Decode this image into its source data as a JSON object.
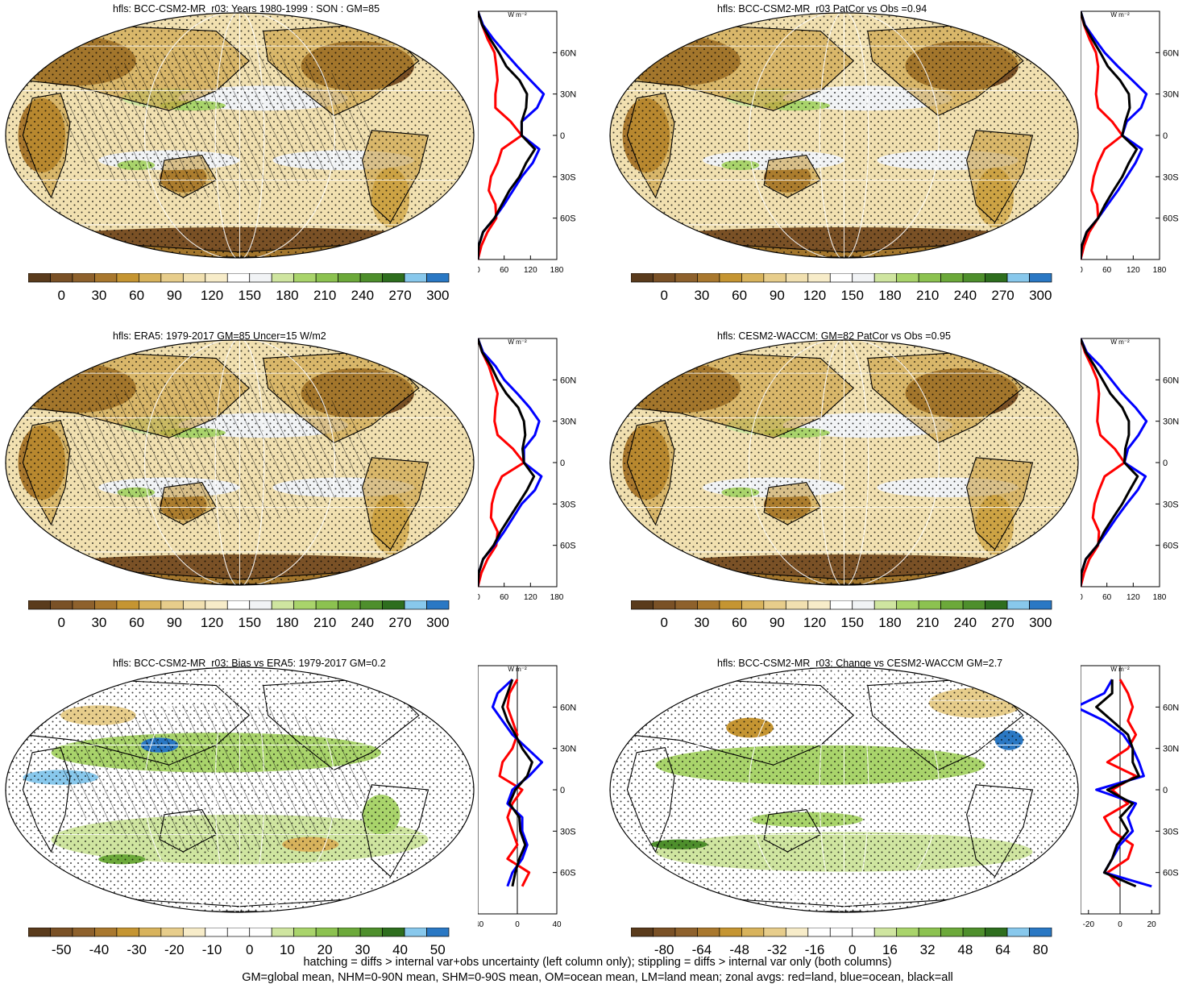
{
  "footer": {
    "line1": "hatching = diffs > internal var+obs uncertainty (left column only); stippling = diffs > internal var only (both columns)",
    "line2": "GM=global mean, NHM=0-90N mean, SHM=0-90S mean, OM=ocean mean, LM=land mean; zonal avgs: red=land, blue=ocean, black=all"
  },
  "colors": {
    "land": "#ff0000",
    "ocean": "#0000ff",
    "all": "#000000",
    "clim_ramp": [
      "#5a3b1c",
      "#7a5126",
      "#8e612c",
      "#a9782e",
      "#c59532",
      "#d8b35c",
      "#e7cd8b",
      "#f1e0b0",
      "#f7ecc9",
      "#ffffff",
      "#f1f3f5",
      "#cfe5a0",
      "#a9d46b",
      "#8cc250",
      "#6ca93a",
      "#4e8f2c",
      "#2e6e1e",
      "#88c8ec",
      "#2a78c4"
    ],
    "diff_ramp": [
      "#5a3b1c",
      "#7a5126",
      "#8e612c",
      "#a9782e",
      "#c59532",
      "#d8b35c",
      "#e7cd8b",
      "#f7ecc9",
      "#ffffff",
      "#ffffff",
      "#ffffff",
      "#cfe5a0",
      "#a9d46b",
      "#8cc250",
      "#6ca93a",
      "#4e8f2c",
      "#2e6e1e",
      "#88c8ec",
      "#2a78c4"
    ]
  },
  "zonal_common": {
    "unit": "W m⁻²",
    "lat_labels": [
      "60N",
      "30N",
      "0",
      "30S",
      "60S"
    ]
  },
  "chart_data": [
    {
      "type": "map+line",
      "title": "hfls: BCC-CSM2-MR_r03: Years 1980-1999 : SON : GM=85",
      "field": "clim",
      "hatching": true,
      "colorbar": [
        "0",
        "30",
        "60",
        "90",
        "120",
        "150",
        "180",
        "210",
        "240",
        "270",
        "300"
      ],
      "zonal": {
        "xlim": [
          0,
          180
        ],
        "xticks": [
          "0",
          "60",
          "120",
          "180"
        ],
        "lat": [
          90,
          80,
          70,
          60,
          50,
          40,
          30,
          20,
          10,
          0,
          -10,
          -20,
          -30,
          -40,
          -50,
          -60,
          -70,
          -80,
          -90
        ],
        "land": [
          0,
          10,
          22,
          38,
          42,
          45,
          40,
          40,
          75,
          100,
          55,
          45,
          30,
          25,
          40,
          42,
          22,
          8,
          0
        ],
        "ocean": [
          0,
          12,
          35,
          62,
          90,
          120,
          150,
          135,
          100,
          100,
          140,
          125,
          100,
          80,
          60,
          38,
          12,
          2,
          0
        ],
        "all": [
          0,
          10,
          28,
          48,
          65,
          95,
          112,
          110,
          100,
          100,
          130,
          110,
          95,
          72,
          55,
          38,
          12,
          2,
          0
        ]
      }
    },
    {
      "type": "map+line",
      "title": "hfls: BCC-CSM2-MR_r03 PatCor vs Obs =0.94",
      "field": "clim",
      "hatching": false,
      "colorbar": [
        "0",
        "30",
        "60",
        "90",
        "120",
        "150",
        "180",
        "210",
        "240",
        "270",
        "300"
      ],
      "zonal": {
        "xlim": [
          0,
          180
        ],
        "xticks": [
          "0",
          "60",
          "120",
          "180"
        ],
        "lat": [
          90,
          80,
          70,
          60,
          50,
          40,
          30,
          20,
          10,
          0,
          -10,
          -20,
          -30,
          -40,
          -50,
          -60,
          -70,
          -80,
          -90
        ],
        "land": [
          0,
          8,
          20,
          35,
          40,
          38,
          35,
          40,
          72,
          95,
          55,
          40,
          30,
          25,
          38,
          40,
          20,
          8,
          0
        ],
        "ocean": [
          0,
          10,
          32,
          55,
          85,
          118,
          150,
          138,
          105,
          95,
          140,
          125,
          105,
          85,
          62,
          40,
          14,
          3,
          0
        ],
        "all": [
          0,
          9,
          26,
          45,
          62,
          90,
          110,
          112,
          102,
          95,
          128,
          110,
          95,
          75,
          56,
          40,
          14,
          3,
          0
        ]
      }
    },
    {
      "type": "map+line",
      "title": "hfls: ERA5: 1979-2017 GM=85 Uncer=15 W/m2",
      "field": "clim",
      "hatching": true,
      "colorbar": [
        "0",
        "30",
        "60",
        "90",
        "120",
        "150",
        "180",
        "210",
        "240",
        "270",
        "300"
      ],
      "zonal": {
        "xlim": [
          0,
          180
        ],
        "xticks": [
          "0",
          "60",
          "120",
          "180"
        ],
        "lat": [
          90,
          80,
          70,
          60,
          50,
          40,
          30,
          20,
          10,
          0,
          -10,
          -20,
          -30,
          -40,
          -50,
          -60,
          -70,
          -80,
          -90
        ],
        "land": [
          0,
          10,
          25,
          35,
          45,
          40,
          38,
          45,
          80,
          105,
          55,
          40,
          32,
          30,
          45,
          42,
          22,
          8,
          0
        ],
        "ocean": [
          0,
          12,
          40,
          60,
          90,
          118,
          140,
          130,
          105,
          105,
          145,
          130,
          100,
          80,
          60,
          38,
          12,
          2,
          0
        ],
        "all": [
          0,
          10,
          30,
          45,
          65,
          92,
          105,
          108,
          102,
          105,
          128,
          112,
          92,
          72,
          52,
          36,
          12,
          2,
          0
        ]
      }
    },
    {
      "type": "map+line",
      "title": "hfls: CESM2-WACCM: GM=82 PatCor vs Obs =0.95",
      "field": "clim",
      "hatching": false,
      "colorbar": [
        "0",
        "30",
        "60",
        "90",
        "120",
        "150",
        "180",
        "210",
        "240",
        "270",
        "300"
      ],
      "zonal": {
        "xlim": [
          0,
          180
        ],
        "xticks": [
          "0",
          "60",
          "120",
          "180"
        ],
        "lat": [
          90,
          80,
          70,
          60,
          50,
          40,
          30,
          20,
          10,
          0,
          -10,
          -20,
          -30,
          -40,
          -50,
          -60,
          -70,
          -80,
          -90
        ],
        "land": [
          0,
          10,
          25,
          38,
          42,
          40,
          38,
          45,
          78,
          100,
          55,
          42,
          32,
          28,
          42,
          40,
          20,
          8,
          0
        ],
        "ocean": [
          0,
          14,
          45,
          70,
          95,
          125,
          150,
          132,
          108,
          100,
          148,
          130,
          105,
          82,
          60,
          38,
          12,
          2,
          0
        ],
        "all": [
          0,
          12,
          32,
          50,
          68,
          95,
          110,
          110,
          102,
          100,
          130,
          112,
          95,
          74,
          54,
          38,
          12,
          2,
          0
        ]
      }
    },
    {
      "type": "map+line",
      "title": "hfls: BCC-CSM2-MR_r03: Bias vs ERA5: 1979-2017  GM=0.2",
      "field": "bias",
      "hatching": true,
      "colorbar": [
        "-50",
        "-40",
        "-30",
        "-20",
        "-10",
        "0",
        "10",
        "20",
        "30",
        "40",
        "50"
      ],
      "zonal": {
        "xlim": [
          -40,
          40
        ],
        "xticks": [
          "-40",
          "0",
          "40"
        ],
        "lat": [
          80,
          70,
          60,
          50,
          40,
          30,
          20,
          10,
          0,
          -10,
          -20,
          -30,
          -40,
          -50,
          -60,
          -70
        ],
        "land": [
          0,
          -8,
          -10,
          -5,
          0,
          -5,
          -15,
          -18,
          5,
          -5,
          -10,
          -5,
          0,
          -10,
          12,
          5
        ],
        "ocean": [
          -5,
          -20,
          -25,
          -15,
          -5,
          10,
          25,
          12,
          -5,
          -10,
          5,
          5,
          10,
          5,
          -5,
          -10
        ],
        "all": [
          -5,
          -10,
          -15,
          -10,
          -2,
          5,
          15,
          10,
          -2,
          -8,
          2,
          3,
          8,
          2,
          -2,
          -5
        ]
      }
    },
    {
      "type": "map+line",
      "title": "hfls: BCC-CSM2-MR_r03: Change vs CESM2-WACCM GM=2.7",
      "field": "change",
      "hatching": false,
      "colorbar": [
        "-80",
        "-64",
        "-48",
        "-32",
        "-16",
        "0",
        "16",
        "32",
        "48",
        "64",
        "80"
      ],
      "zonal": {
        "xlim": [
          -25,
          25
        ],
        "xticks": [
          "-20",
          "0",
          "20"
        ],
        "lat": [
          80,
          70,
          60,
          50,
          40,
          30,
          20,
          10,
          0,
          -10,
          -20,
          -30,
          -40,
          -50,
          -60,
          -70
        ],
        "land": [
          0,
          5,
          8,
          5,
          10,
          5,
          -8,
          10,
          -5,
          5,
          -10,
          -5,
          8,
          5,
          -8,
          0
        ],
        "ocean": [
          -5,
          -10,
          -28,
          -10,
          2,
          8,
          12,
          15,
          -15,
          10,
          5,
          8,
          0,
          -5,
          -10,
          20
        ],
        "all": [
          -5,
          -5,
          -15,
          -5,
          5,
          8,
          8,
          12,
          -8,
          8,
          0,
          5,
          -2,
          -5,
          -10,
          10
        ]
      }
    }
  ]
}
